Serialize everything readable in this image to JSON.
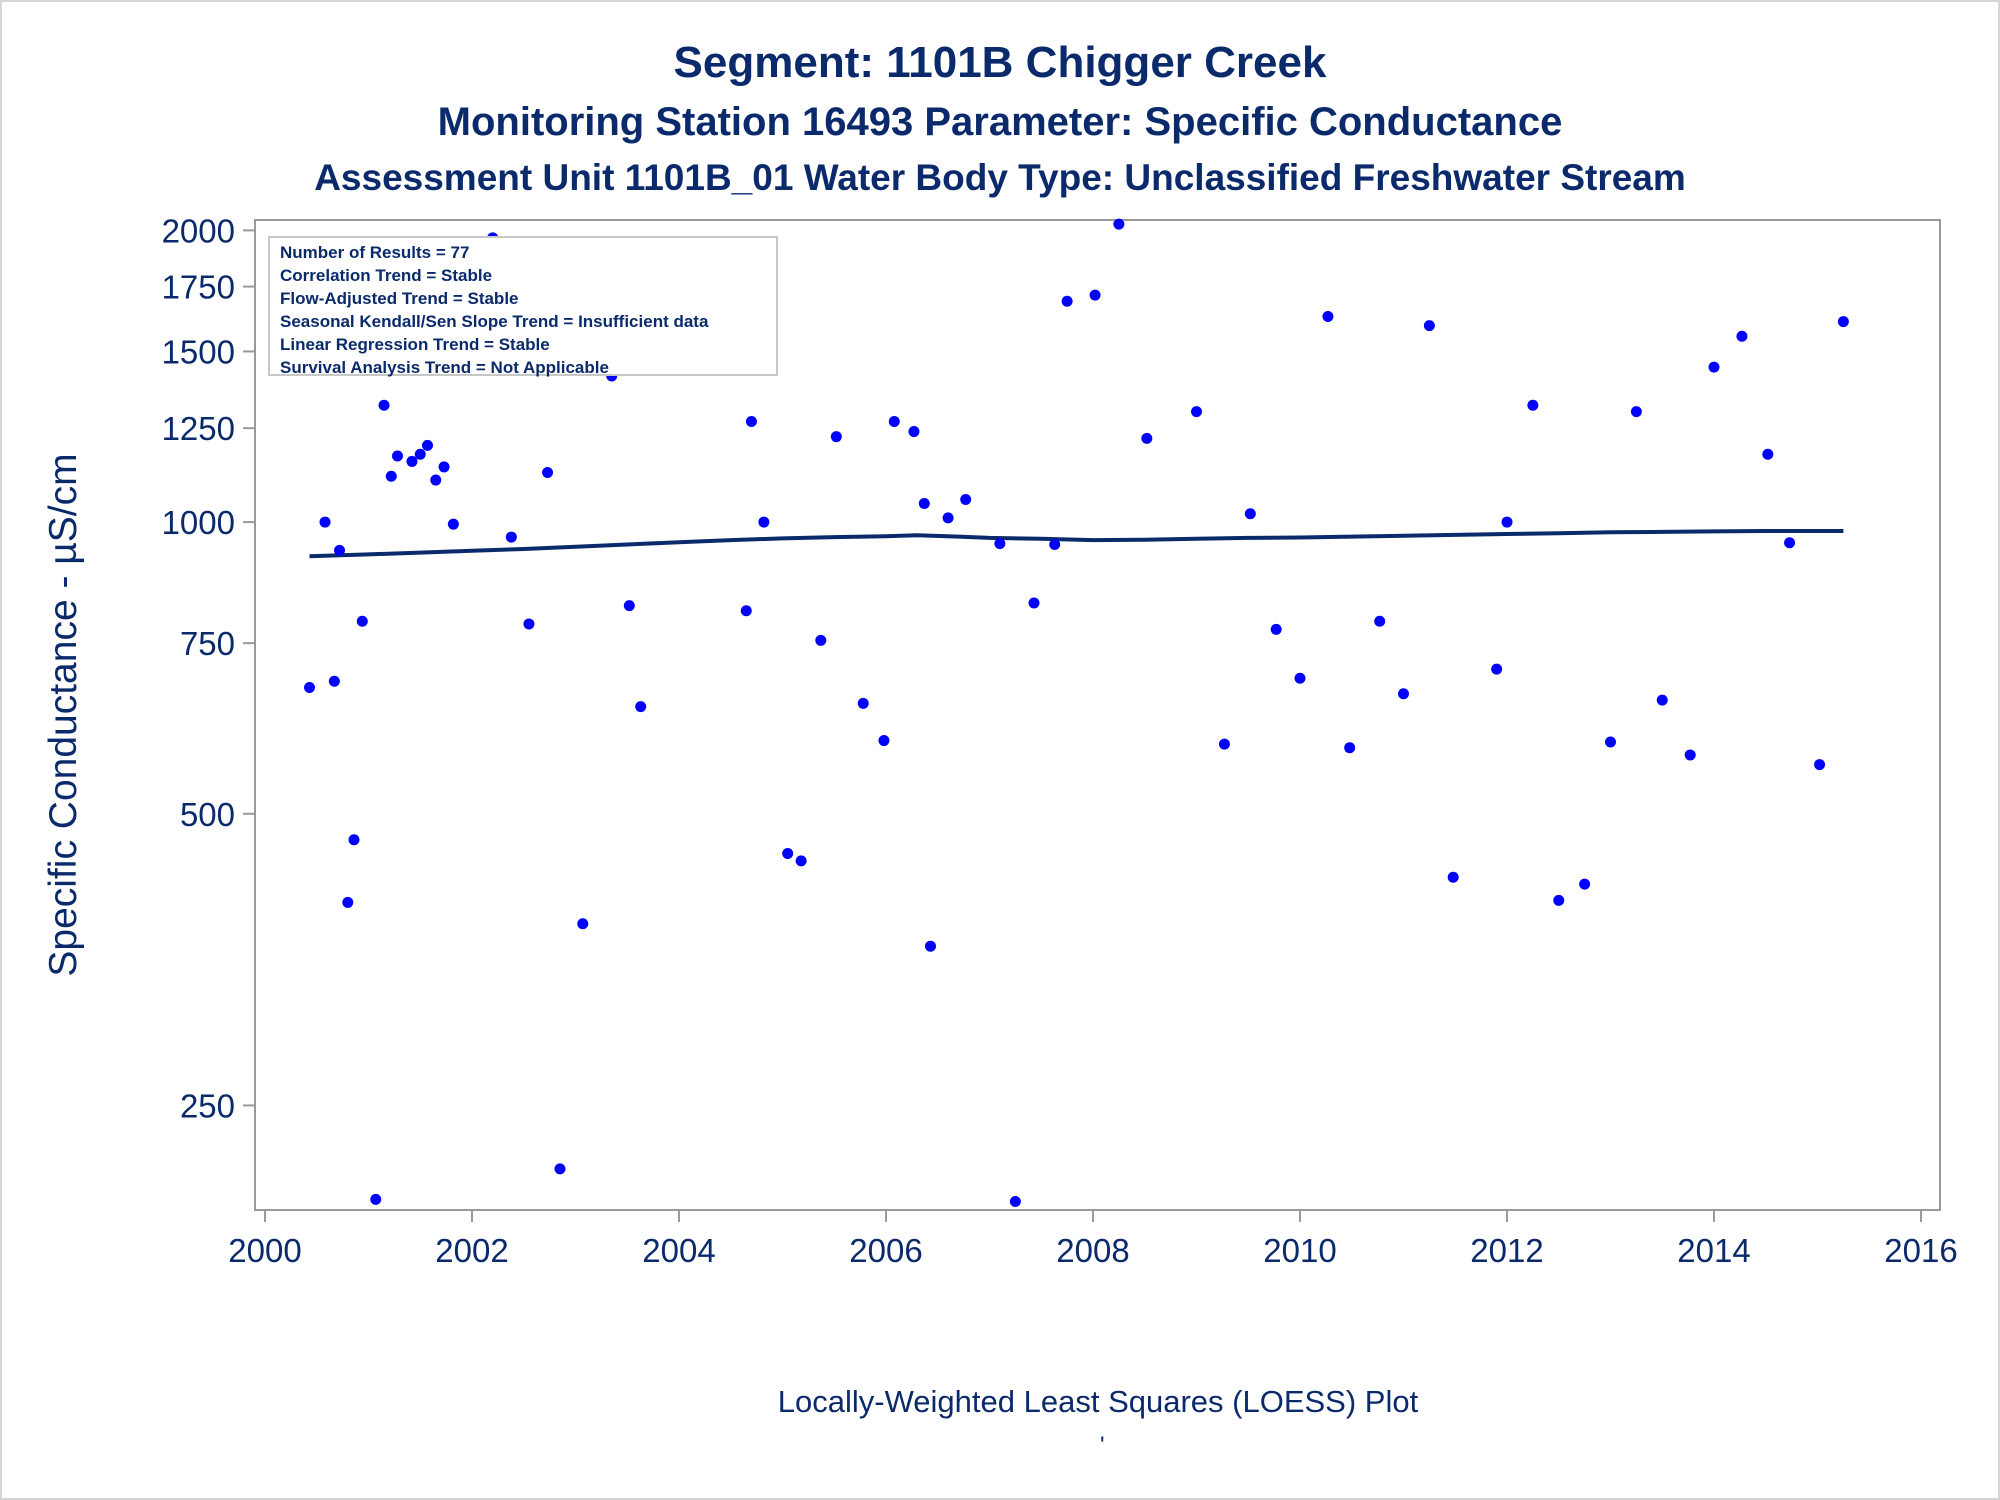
{
  "titles": {
    "line1": "Segment: 1101B  Chigger Creek",
    "line2": "Monitoring Station 16493 Parameter: Specific Conductance",
    "line3": "Assessment Unit 1101B_01   Water Body Type: Unclassified Freshwater Stream"
  },
  "stats_box": [
    "Number of Results = 77",
    "Correlation Trend = Stable",
    "Flow-Adjusted Trend = Stable",
    "Seasonal Kendall/Sen Slope Trend = Insufficient data",
    "Linear Regression Trend = Stable",
    "Survival Analysis Trend = Not Applicable"
  ],
  "footnote": "Locally-Weighted Least Squares (LOESS) Plot",
  "footnote_mark": "'",
  "colors": {
    "text": "#0a2a6b",
    "points": "#0000ff",
    "loess": "#0a2a6b",
    "axis": "#999999"
  },
  "chart_data": {
    "type": "scatter",
    "ylabel": "Specific Conductance -  µS/cm",
    "xlim": [
      2000,
      2016
    ],
    "ylim": [
      195,
      2050
    ],
    "y_scale": "log",
    "x_ticks": [
      2000,
      2002,
      2004,
      2006,
      2008,
      2010,
      2012,
      2014,
      2016
    ],
    "y_ticks": [
      250,
      500,
      750,
      1000,
      1250,
      1500,
      1750,
      2000
    ],
    "grid": false,
    "points": [
      {
        "x": 2000.43,
        "y": 675
      },
      {
        "x": 2000.58,
        "y": 1000
      },
      {
        "x": 2000.67,
        "y": 685
      },
      {
        "x": 2000.72,
        "y": 935
      },
      {
        "x": 2000.8,
        "y": 405
      },
      {
        "x": 2000.86,
        "y": 470
      },
      {
        "x": 2000.94,
        "y": 790
      },
      {
        "x": 2001.07,
        "y": 200
      },
      {
        "x": 2001.15,
        "y": 1320
      },
      {
        "x": 2001.22,
        "y": 1115
      },
      {
        "x": 2001.28,
        "y": 1170
      },
      {
        "x": 2001.42,
        "y": 1155
      },
      {
        "x": 2001.5,
        "y": 1175
      },
      {
        "x": 2001.57,
        "y": 1200
      },
      {
        "x": 2001.65,
        "y": 1105
      },
      {
        "x": 2001.73,
        "y": 1140
      },
      {
        "x": 2001.82,
        "y": 995
      },
      {
        "x": 2002.05,
        "y": 1480
      },
      {
        "x": 2002.2,
        "y": 1965
      },
      {
        "x": 2002.38,
        "y": 965
      },
      {
        "x": 2002.55,
        "y": 785
      },
      {
        "x": 2002.73,
        "y": 1125
      },
      {
        "x": 2002.85,
        "y": 215
      },
      {
        "x": 2003.07,
        "y": 385
      },
      {
        "x": 2003.2,
        "y": 1455
      },
      {
        "x": 2003.35,
        "y": 1415
      },
      {
        "x": 2003.52,
        "y": 820
      },
      {
        "x": 2003.63,
        "y": 645
      },
      {
        "x": 2004.65,
        "y": 810
      },
      {
        "x": 2004.7,
        "y": 1270
      },
      {
        "x": 2004.82,
        "y": 1000
      },
      {
        "x": 2005.05,
        "y": 455
      },
      {
        "x": 2005.18,
        "y": 447
      },
      {
        "x": 2005.37,
        "y": 755
      },
      {
        "x": 2005.52,
        "y": 1225
      },
      {
        "x": 2005.78,
        "y": 650
      },
      {
        "x": 2005.98,
        "y": 595
      },
      {
        "x": 2006.08,
        "y": 1270
      },
      {
        "x": 2006.27,
        "y": 1240
      },
      {
        "x": 2006.37,
        "y": 1045
      },
      {
        "x": 2006.43,
        "y": 365
      },
      {
        "x": 2006.6,
        "y": 1010
      },
      {
        "x": 2006.77,
        "y": 1055
      },
      {
        "x": 2007.1,
        "y": 950
      },
      {
        "x": 2007.25,
        "y": 199
      },
      {
        "x": 2007.43,
        "y": 825
      },
      {
        "x": 2007.63,
        "y": 948
      },
      {
        "x": 2007.75,
        "y": 1690
      },
      {
        "x": 2008.02,
        "y": 1715
      },
      {
        "x": 2008.25,
        "y": 2030
      },
      {
        "x": 2008.52,
        "y": 1220
      },
      {
        "x": 2009.0,
        "y": 1300
      },
      {
        "x": 2009.27,
        "y": 590
      },
      {
        "x": 2009.52,
        "y": 1020
      },
      {
        "x": 2009.77,
        "y": 775
      },
      {
        "x": 2010.0,
        "y": 690
      },
      {
        "x": 2010.27,
        "y": 1630
      },
      {
        "x": 2010.48,
        "y": 585
      },
      {
        "x": 2010.77,
        "y": 790
      },
      {
        "x": 2011.0,
        "y": 665
      },
      {
        "x": 2011.25,
        "y": 1595
      },
      {
        "x": 2011.48,
        "y": 430
      },
      {
        "x": 2011.9,
        "y": 705
      },
      {
        "x": 2012.0,
        "y": 1000
      },
      {
        "x": 2012.5,
        "y": 407
      },
      {
        "x": 2012.25,
        "y": 1320
      },
      {
        "x": 2012.75,
        "y": 423
      },
      {
        "x": 2013.0,
        "y": 593
      },
      {
        "x": 2013.25,
        "y": 1300
      },
      {
        "x": 2013.5,
        "y": 655
      },
      {
        "x": 2013.77,
        "y": 575
      },
      {
        "x": 2014.0,
        "y": 1445
      },
      {
        "x": 2014.27,
        "y": 1555
      },
      {
        "x": 2014.52,
        "y": 1175
      },
      {
        "x": 2014.73,
        "y": 952
      },
      {
        "x": 2015.02,
        "y": 562
      },
      {
        "x": 2015.25,
        "y": 1610
      }
    ],
    "loess": [
      {
        "x": 2000.43,
        "y": 922
      },
      {
        "x": 2001.0,
        "y": 926
      },
      {
        "x": 2001.5,
        "y": 930
      },
      {
        "x": 2002.0,
        "y": 934
      },
      {
        "x": 2002.5,
        "y": 938
      },
      {
        "x": 2003.0,
        "y": 943
      },
      {
        "x": 2003.5,
        "y": 948
      },
      {
        "x": 2004.0,
        "y": 953
      },
      {
        "x": 2004.5,
        "y": 958
      },
      {
        "x": 2005.0,
        "y": 962
      },
      {
        "x": 2005.5,
        "y": 965
      },
      {
        "x": 2006.0,
        "y": 967
      },
      {
        "x": 2006.3,
        "y": 969
      },
      {
        "x": 2006.7,
        "y": 966
      },
      {
        "x": 2007.0,
        "y": 963
      },
      {
        "x": 2007.5,
        "y": 961
      },
      {
        "x": 2008.0,
        "y": 958
      },
      {
        "x": 2008.5,
        "y": 959
      },
      {
        "x": 2009.0,
        "y": 961
      },
      {
        "x": 2009.5,
        "y": 963
      },
      {
        "x": 2010.0,
        "y": 964
      },
      {
        "x": 2010.5,
        "y": 966
      },
      {
        "x": 2011.0,
        "y": 968
      },
      {
        "x": 2011.5,
        "y": 970
      },
      {
        "x": 2012.0,
        "y": 972
      },
      {
        "x": 2012.5,
        "y": 974
      },
      {
        "x": 2013.0,
        "y": 976
      },
      {
        "x": 2013.5,
        "y": 977
      },
      {
        "x": 2014.0,
        "y": 978
      },
      {
        "x": 2014.5,
        "y": 979
      },
      {
        "x": 2015.25,
        "y": 979
      }
    ]
  }
}
